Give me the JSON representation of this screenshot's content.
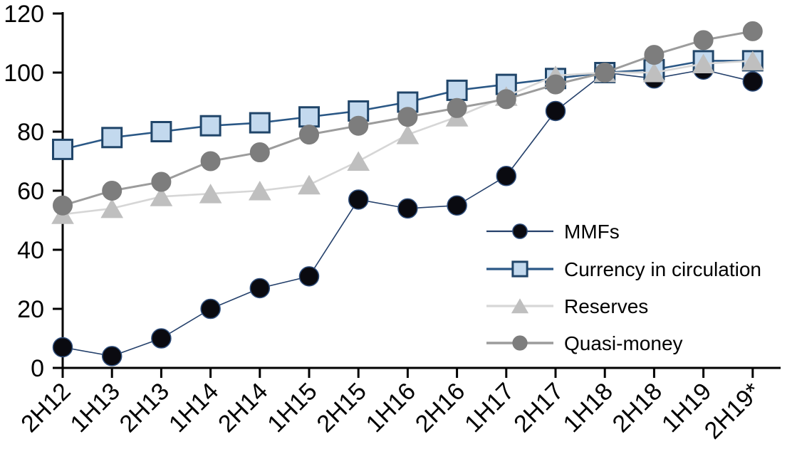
{
  "chart_data": {
    "type": "line",
    "title": "",
    "xlabel": "",
    "ylabel": "",
    "categories": [
      "2H12",
      "1H13",
      "2H13",
      "1H14",
      "2H14",
      "1H15",
      "2H15",
      "1H16",
      "2H16",
      "1H17",
      "2H17",
      "1H18",
      "2H18",
      "1H19",
      "2H19*"
    ],
    "series": [
      {
        "name": "MMFs",
        "marker": "circle",
        "marker_fill": "#0a0a10",
        "marker_stroke": "#2f4e7c",
        "line_color": "#24406b",
        "values": [
          7,
          4,
          10,
          20,
          27,
          31,
          57,
          54,
          55,
          65,
          87,
          100,
          98,
          101,
          97
        ]
      },
      {
        "name": "Currency in circulation",
        "marker": "square",
        "marker_fill": "#c3d9ee",
        "marker_stroke": "#204569",
        "line_color": "#2b5886",
        "values": [
          74,
          78,
          80,
          82,
          83,
          85,
          87,
          90,
          94,
          96,
          98,
          100,
          101,
          104,
          104
        ]
      },
      {
        "name": "Reserves",
        "marker": "triangle",
        "marker_fill": "#bfbfbf",
        "marker_stroke": "#bfbfbf",
        "line_color": "#d6d6d6",
        "values": [
          52,
          54,
          58,
          59,
          60,
          62,
          70,
          79,
          85,
          92,
          99,
          100,
          100,
          103,
          104
        ]
      },
      {
        "name": "Quasi-money",
        "marker": "circle",
        "marker_fill": "#7d7d7d",
        "marker_stroke": "#7d7d7d",
        "line_color": "#9c9c9c",
        "values": [
          55,
          60,
          63,
          70,
          73,
          79,
          82,
          85,
          88,
          91,
          96,
          100,
          106,
          111,
          114
        ]
      }
    ],
    "y_axis": {
      "min": 0,
      "max": 120,
      "step": 20,
      "tick_labels": [
        "0",
        "20",
        "40",
        "60",
        "80",
        "100",
        "120"
      ]
    },
    "x_axis": {
      "label_rotation_deg": -45
    },
    "legend": {
      "position": "inside-right",
      "entries": [
        "MMFs",
        "Currency in circulation",
        "Reserves",
        "Quasi-money"
      ]
    },
    "grid": false,
    "axis_color": "#000000",
    "background": "#ffffff"
  }
}
